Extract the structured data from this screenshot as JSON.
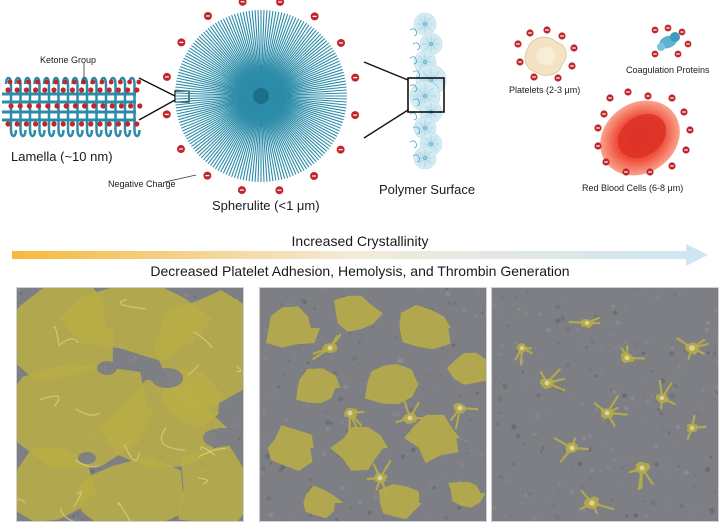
{
  "labels": {
    "ketone_group": "Ketone Group",
    "lamella": "Lamella (~10 nm)",
    "negative_charge": "Negative Charge",
    "spherulite": "Spherulite (<1 μm)",
    "polymer_surface": "Polymer Surface",
    "platelets": "Platelets (2-3 μm)",
    "coagulation_proteins": "Coagulation Proteins",
    "red_blood_cells": "Red Blood Cells (6-8 μm)"
  },
  "gradient": {
    "title": "Increased Crystallinity",
    "subtitle": "Decreased Platelet Adhesion, Hemolysis, and Thrombin Generation",
    "start_color": "#f6b93b",
    "end_color": "#cfe6f2"
  },
  "charge_symbol": "−",
  "micrographs": [
    {
      "name": "sem-low-crystallinity",
      "coverage": "high"
    },
    {
      "name": "sem-medium-crystallinity",
      "coverage": "medium"
    },
    {
      "name": "sem-high-crystallinity",
      "coverage": "low"
    }
  ],
  "colors": {
    "polymer_blue": "#2b8ca8",
    "charge_red": "#c0262b",
    "platelet_overlay": "#b8ad47",
    "sem_gray": "#7d7f85"
  }
}
